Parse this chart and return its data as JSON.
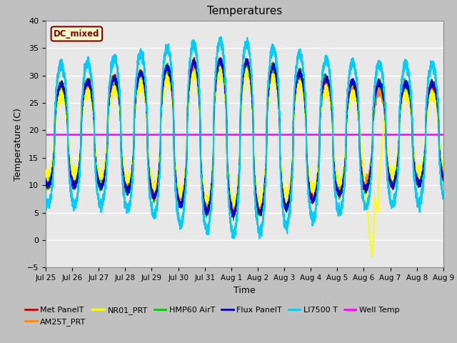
{
  "title": "Temperatures",
  "xlabel": "Time",
  "ylabel": "Temperature (C)",
  "ylim": [
    -5,
    40
  ],
  "yticks": [
    -5,
    0,
    5,
    10,
    15,
    20,
    25,
    30,
    35,
    40
  ],
  "well_temp_value": 19.2,
  "dc_mixed_label": "DC_mixed",
  "dc_mixed_box_facecolor": "#ffffcc",
  "dc_mixed_box_edgecolor": "#800000",
  "dc_mixed_text_color": "#800000",
  "fig_facecolor": "#c0c0c0",
  "plot_bg_color": "#e8e8e8",
  "legend_entries": [
    {
      "label": "Met PanelT",
      "color": "#cc0000"
    },
    {
      "label": "AM25T_PRT",
      "color": "#ff8800"
    },
    {
      "label": "NR01_PRT",
      "color": "#ffff00"
    },
    {
      "label": "HMP60 AirT",
      "color": "#00cc00"
    },
    {
      "label": "Flux PanelT",
      "color": "#0000cc"
    },
    {
      "label": "LI7500 T",
      "color": "#00ccff"
    },
    {
      "label": "Well Temp",
      "color": "#ff00ff"
    }
  ],
  "x_tick_labels": [
    "Jul 25",
    "Jul 26",
    "Jul 27",
    "Jul 28",
    "Jul 29",
    "Jul 30",
    "Jul 31",
    "Aug 1",
    "Aug 2",
    "Aug 3",
    "Aug 4",
    "Aug 5",
    "Aug 6",
    "Aug 7",
    "Aug 8",
    "Aug 9"
  ],
  "n_days": 16
}
